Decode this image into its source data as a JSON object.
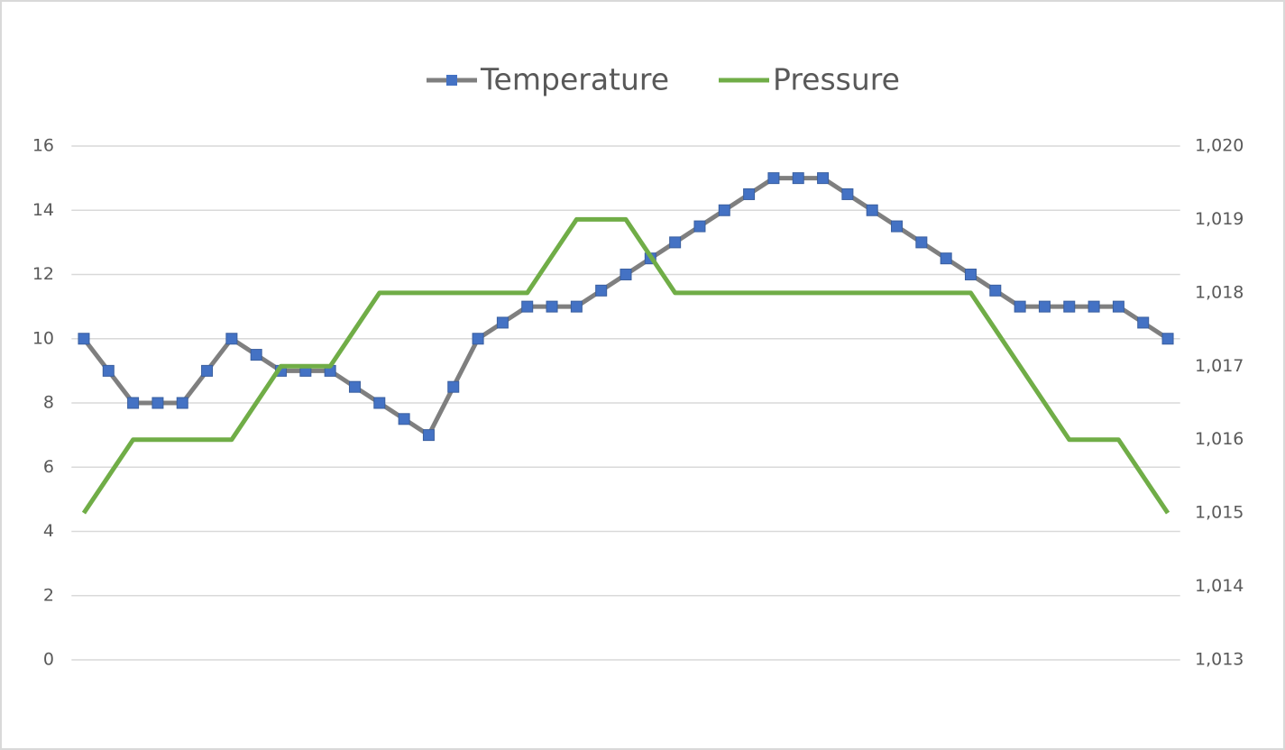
{
  "chart_data": {
    "type": "line",
    "categories": [
      null,
      null,
      null,
      null,
      null,
      null,
      null,
      null,
      null,
      null,
      null,
      null,
      null,
      null,
      null,
      null,
      null,
      null,
      null,
      null,
      null,
      null,
      null,
      null,
      null,
      null,
      null,
      null,
      null,
      null,
      null,
      null,
      null,
      null,
      null,
      null,
      null,
      null,
      null,
      null,
      null,
      null,
      null,
      null,
      null
    ],
    "series": [
      {
        "name": "Temperature",
        "color": "#4472c4",
        "line_color": "#7f7f7f",
        "marker": "square",
        "values": [
          10,
          9,
          8,
          8,
          8,
          9,
          10,
          9.5,
          9,
          9,
          9,
          8.5,
          8,
          7.5,
          7,
          8.5,
          10,
          10.5,
          11,
          11,
          11,
          11.5,
          12,
          12.5,
          13,
          13.5,
          14,
          14.5,
          15,
          15,
          15,
          14.5,
          14,
          13.5,
          13,
          12.5,
          12,
          11.5,
          11,
          11,
          11,
          11,
          11,
          10.5,
          10
        ]
      },
      {
        "name": "Pressure",
        "color": "#70ad47",
        "axis": "y2",
        "values": [
          1015,
          1015.5,
          1016,
          1016,
          1016,
          1016,
          1016,
          1016.5,
          1017,
          1017,
          1017,
          1017.5,
          1018,
          1018,
          1018,
          1018,
          1018,
          1018,
          1018,
          1018.5,
          1019,
          1019,
          1019,
          1018.5,
          1018,
          1018,
          1018,
          1018,
          1018,
          1018,
          1018,
          1018,
          1018,
          1018,
          1018,
          1018,
          1018,
          1017.5,
          1017,
          1016.5,
          1016,
          1016,
          1016,
          1015.5,
          1015
        ]
      }
    ],
    "ylim": [
      0,
      16
    ],
    "yticks": [
      0,
      2,
      4,
      6,
      8,
      10,
      12,
      14,
      16
    ],
    "y2lim": [
      1013,
      1020
    ],
    "y2ticks": [
      {
        "value": 1013,
        "label": "1,013"
      },
      {
        "value": 1014,
        "label": "1,014"
      },
      {
        "value": 1015,
        "label": "1,015"
      },
      {
        "value": 1016,
        "label": "1,016"
      },
      {
        "value": 1017,
        "label": "1,017"
      },
      {
        "value": 1018,
        "label": "1,018"
      },
      {
        "value": 1019,
        "label": "1,019"
      },
      {
        "value": 1020,
        "label": "1,020"
      }
    ],
    "grid": true,
    "legend": "top"
  }
}
